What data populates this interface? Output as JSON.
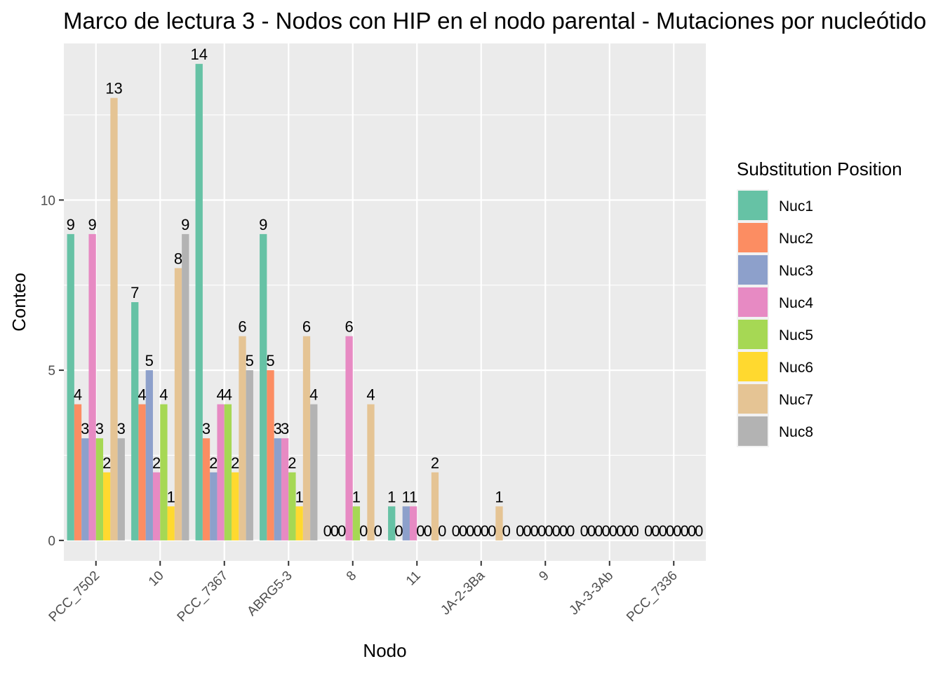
{
  "chart_data": {
    "type": "bar",
    "title": "Marco de lectura 3 - Nodos con HIP en el nodo parental - Mutaciones por nucleótido",
    "xlabel": "Nodo",
    "ylabel": "Conteo",
    "ylim": [
      -0.6,
      14.6
    ],
    "y_ticks": [
      0,
      5,
      10
    ],
    "grid": true,
    "legend": {
      "title": "Substitution Position",
      "placement": "right"
    },
    "categories": [
      "PCC_7502",
      "10",
      "PCC_7367",
      "ABRG5-3",
      "8",
      "11",
      "JA-2-3Ba",
      "9",
      "JA-3-3Ab",
      "PCC_7336"
    ],
    "series": [
      {
        "name": "Nuc1",
        "color": "#66C2A5",
        "values": [
          9,
          7,
          14,
          9,
          0,
          1,
          0,
          0,
          0,
          0
        ]
      },
      {
        "name": "Nuc2",
        "color": "#FC8D62",
        "values": [
          4,
          4,
          3,
          5,
          0,
          0,
          0,
          0,
          0,
          0
        ]
      },
      {
        "name": "Nuc3",
        "color": "#8DA0CB",
        "values": [
          3,
          5,
          2,
          3,
          0,
          1,
          0,
          0,
          0,
          0
        ]
      },
      {
        "name": "Nuc4",
        "color": "#E78AC3",
        "values": [
          9,
          2,
          4,
          3,
          6,
          1,
          0,
          0,
          0,
          0
        ]
      },
      {
        "name": "Nuc5",
        "color": "#A6D854",
        "values": [
          3,
          4,
          4,
          2,
          1,
          0,
          0,
          0,
          0,
          0
        ]
      },
      {
        "name": "Nuc6",
        "color": "#FFD92F",
        "values": [
          2,
          1,
          2,
          1,
          0,
          0,
          0,
          0,
          0,
          0
        ]
      },
      {
        "name": "Nuc7",
        "color": "#E5C494",
        "values": [
          13,
          8,
          6,
          6,
          4,
          2,
          1,
          0,
          0,
          0
        ]
      },
      {
        "name": "Nuc8",
        "color": "#B3B3B3",
        "values": [
          3,
          9,
          5,
          4,
          0,
          0,
          0,
          0,
          0,
          0
        ]
      }
    ]
  },
  "colors": {
    "panel_background": "#EBEBEB",
    "gridline": "#FFFFFF"
  }
}
